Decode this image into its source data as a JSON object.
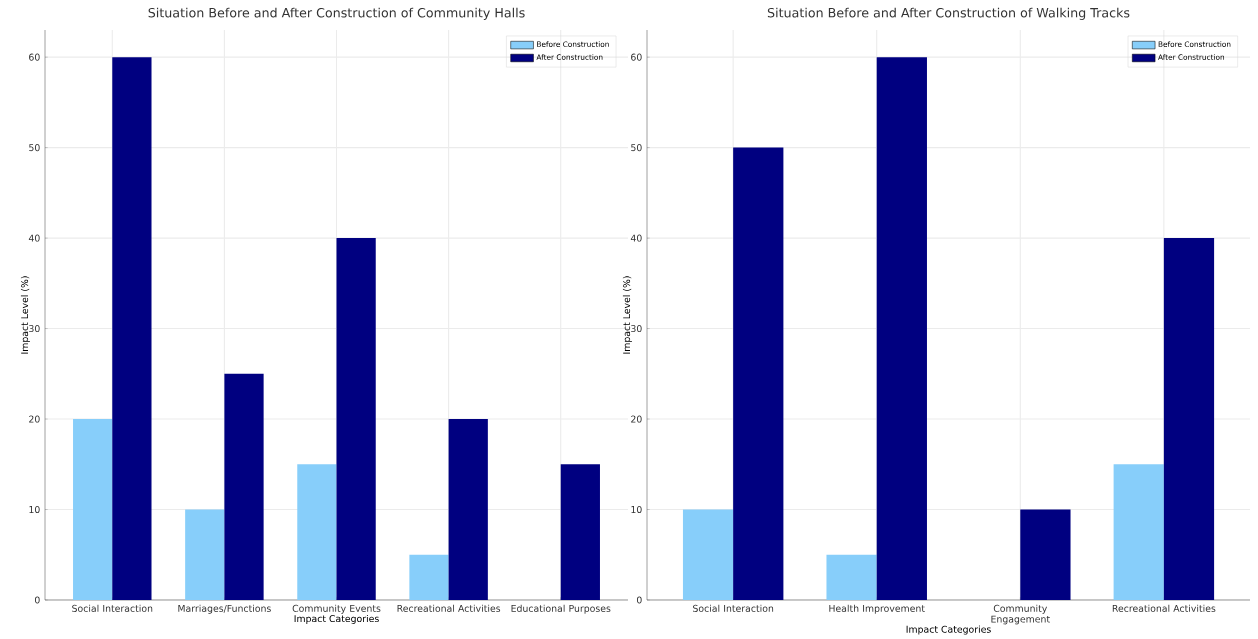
{
  "chart_data": [
    {
      "type": "bar",
      "title": "Situation Before and After Construction of Community Halls",
      "xlabel": "Impact Categories",
      "ylabel": "Impact Level (%)",
      "categories": [
        "Social Interaction",
        "Marriages/Functions",
        "Community Events",
        "Recreational Activities",
        "Educational Purposes"
      ],
      "series": [
        {
          "name": "Before Construction",
          "color": "#87cefa",
          "values": [
            20,
            10,
            15,
            5,
            0
          ]
        },
        {
          "name": "After Construction",
          "color": "#000080",
          "values": [
            60,
            25,
            40,
            20,
            15
          ]
        }
      ],
      "ylim": [
        0,
        63
      ],
      "yticks": [
        0,
        10,
        20,
        30,
        40,
        50,
        60
      ],
      "grid": true,
      "legend": "top right"
    },
    {
      "type": "bar",
      "title": "Situation Before and After Construction of Walking Tracks",
      "xlabel": "Impact Categories",
      "ylabel": "Impact Level (%)",
      "categories": [
        "Social Interaction",
        "Health Improvement",
        "Community Engagement",
        "Recreational Activities"
      ],
      "series": [
        {
          "name": "Before Construction",
          "color": "#87cefa",
          "values": [
            10,
            5,
            0,
            15
          ]
        },
        {
          "name": "After Construction",
          "color": "#000080",
          "values": [
            50,
            60,
            10,
            40
          ]
        }
      ],
      "ylim": [
        0,
        63
      ],
      "yticks": [
        0,
        10,
        20,
        30,
        40,
        50,
        60
      ],
      "grid": true,
      "legend": "top right"
    }
  ]
}
